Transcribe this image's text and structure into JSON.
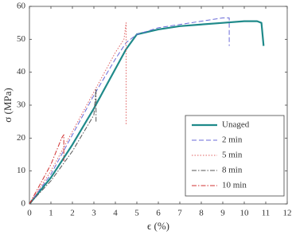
{
  "chart_data": {
    "type": "line",
    "xlabel": "ϵ (%)",
    "ylabel": "σ (MPa)",
    "xlim": [
      0,
      12
    ],
    "xticks": [
      0,
      1,
      2,
      3,
      4,
      5,
      6,
      7,
      8,
      9,
      10,
      11,
      12
    ],
    "ylim": [
      0,
      60
    ],
    "yticks": [
      0,
      10,
      20,
      30,
      40,
      50,
      60
    ],
    "legend": "lower right",
    "series": [
      {
        "name": "Unaged",
        "color": "#1f8a8a",
        "linestyle": "solid",
        "x": [
          0,
          1,
          2,
          3,
          4,
          4.5,
          5,
          6,
          7,
          8,
          9,
          10,
          10.6,
          10.8,
          10.9
        ],
        "values": [
          0,
          8,
          18,
          29,
          41,
          47,
          51.5,
          53,
          54,
          54.5,
          55,
          55.5,
          55.5,
          55,
          48
        ]
      },
      {
        "name": "2 min",
        "color": "#6b6bd8",
        "linestyle": "dashed",
        "x": [
          0,
          1,
          2,
          3,
          4,
          4.5,
          5,
          6,
          7,
          8,
          9,
          9.3,
          9.3
        ],
        "values": [
          0,
          9,
          21,
          33,
          44,
          49,
          51.5,
          53.5,
          54.5,
          55.5,
          56.5,
          56.5,
          48
        ]
      },
      {
        "name": "5 min",
        "color": "#e06060",
        "linestyle": "dotted",
        "x": [
          0,
          1,
          2,
          3,
          4,
          4.4,
          4.5,
          4.5
        ],
        "values": [
          0,
          10,
          22,
          34,
          46,
          50,
          55,
          24
        ]
      },
      {
        "name": "8 min",
        "color": "#555555",
        "linestyle": "dashdot",
        "x": [
          0,
          1,
          2,
          3,
          3.1,
          3.1
        ],
        "values": [
          0,
          7,
          16,
          27,
          35,
          25
        ]
      },
      {
        "name": "10 min",
        "color": "#d03030",
        "linestyle": "dashdot",
        "x": [
          0,
          0.5,
          1,
          1.5,
          1.6,
          1.6
        ],
        "values": [
          0,
          6,
          12,
          20,
          21,
          13
        ]
      }
    ]
  }
}
